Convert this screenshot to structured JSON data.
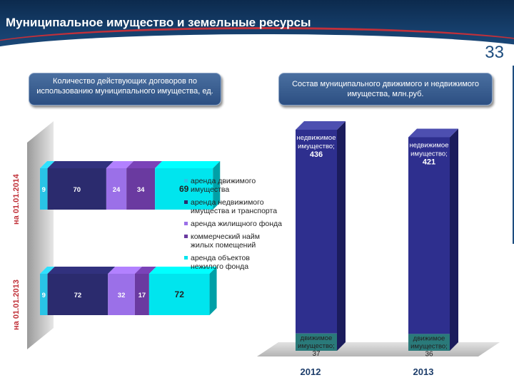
{
  "header": {
    "title": "Муниципальное имущество и земельные ресурсы",
    "slide_number": "33"
  },
  "colors": {
    "movable": "#29c4e6",
    "immovable": "#2b2b6e",
    "housing": "#9b70e8",
    "commercial": "#6a3aa0",
    "nonresidential": "#00e5ee",
    "bar2_main": "#2e2f8e",
    "bar2_small": "#2a7a7a"
  },
  "chart_data": [
    {
      "type": "bar",
      "orientation": "horizontal",
      "stacked": true,
      "title": "Количество действующих договоров по использованию муниципального имущества, ед.",
      "categories": [
        "на 01.01.2014",
        "на 01.01.2013"
      ],
      "series": [
        {
          "name": "аренда движимого имущества",
          "values": [
            9,
            9
          ]
        },
        {
          "name": "аренда недвижимого имущества и транспорта",
          "values": [
            70,
            72
          ]
        },
        {
          "name": "аренда жилищного фонда",
          "values": [
            24,
            32
          ]
        },
        {
          "name": "коммерческий найм жилых помещений",
          "values": [
            34,
            17
          ]
        },
        {
          "name": "аренда объектов нежилого фонда",
          "values": [
            69,
            72
          ]
        }
      ],
      "legend": "right"
    },
    {
      "type": "bar",
      "stacked": true,
      "title": "Состав муниципального движимого и недвижимого имущества, млн.руб.",
      "categories": [
        "2012",
        "2013"
      ],
      "series": [
        {
          "name": "недвижимое имущество;",
          "values": [
            436,
            421
          ]
        },
        {
          "name": "движимое имущество;",
          "values": [
            37,
            36
          ]
        }
      ]
    }
  ]
}
